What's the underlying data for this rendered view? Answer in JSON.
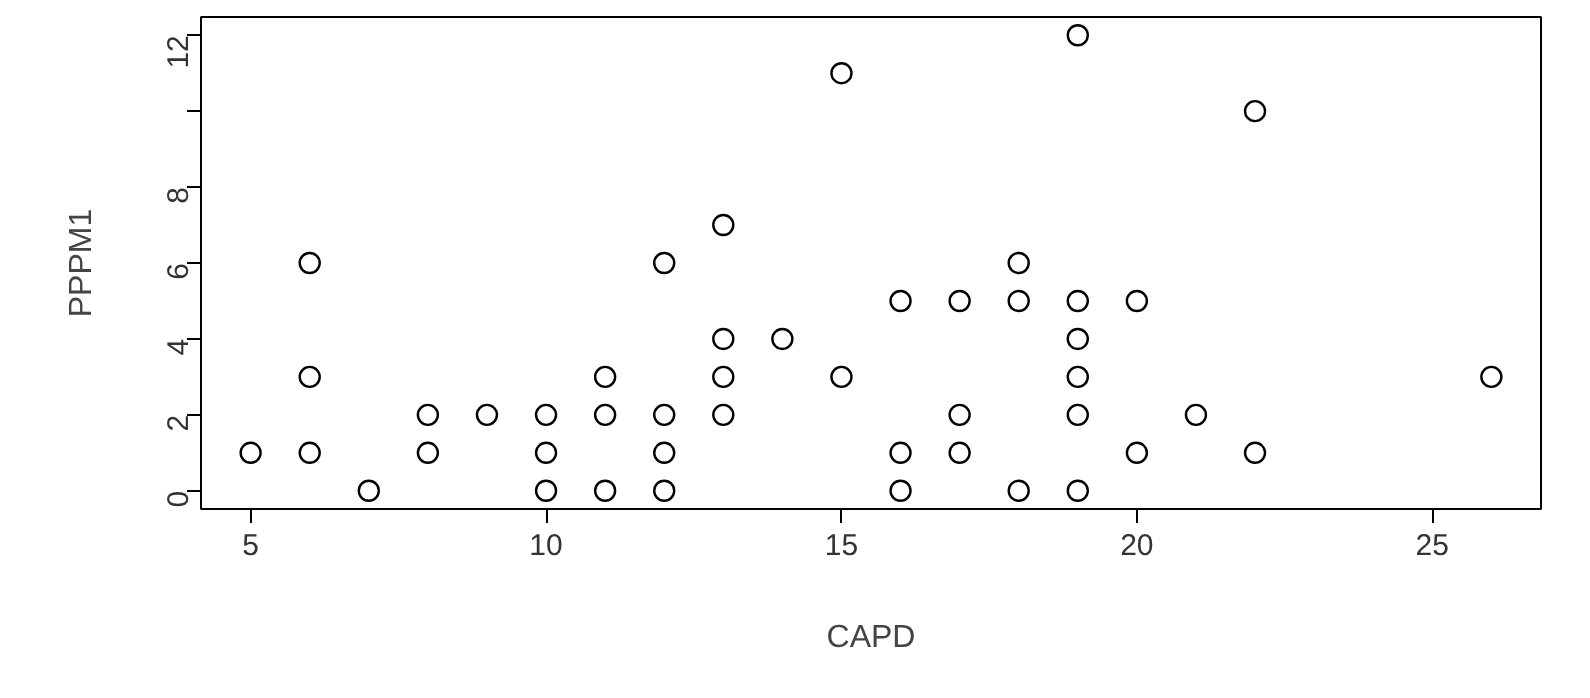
{
  "chart_data": {
    "type": "scatter",
    "xlabel": "CAPD",
    "ylabel": "PPPM1",
    "marker": "circle",
    "grid": false,
    "series": [
      {
        "color": "#000000",
        "x": [
          5,
          6,
          6,
          6,
          7,
          8,
          8,
          9,
          10,
          10,
          10,
          11,
          11,
          11,
          12,
          12,
          12,
          12,
          13,
          13,
          13,
          13,
          14,
          15,
          15,
          16,
          16,
          16,
          17,
          17,
          17,
          18,
          18,
          18,
          19,
          19,
          19,
          19,
          19,
          19,
          20,
          20,
          21,
          22,
          22,
          26
        ],
        "values": [
          1,
          6,
          3,
          1,
          0,
          2,
          1,
          2,
          2,
          1,
          0,
          3,
          2,
          0,
          6,
          2,
          1,
          0,
          7,
          4,
          3,
          2,
          4,
          11,
          3,
          5,
          1,
          0,
          5,
          2,
          1,
          6,
          5,
          0,
          12,
          5,
          4,
          3,
          2,
          0,
          5,
          1,
          2,
          10,
          1,
          3
        ]
      }
    ],
    "xlim": [
      4.16,
      26.84
    ],
    "ylim": [
      -0.48,
      12.48
    ],
    "xticks": [
      5,
      10,
      15,
      20,
      25
    ],
    "yticks": [
      0,
      2,
      4,
      6,
      8,
      {
        "value": 10,
        "label": null
      },
      12
    ]
  }
}
